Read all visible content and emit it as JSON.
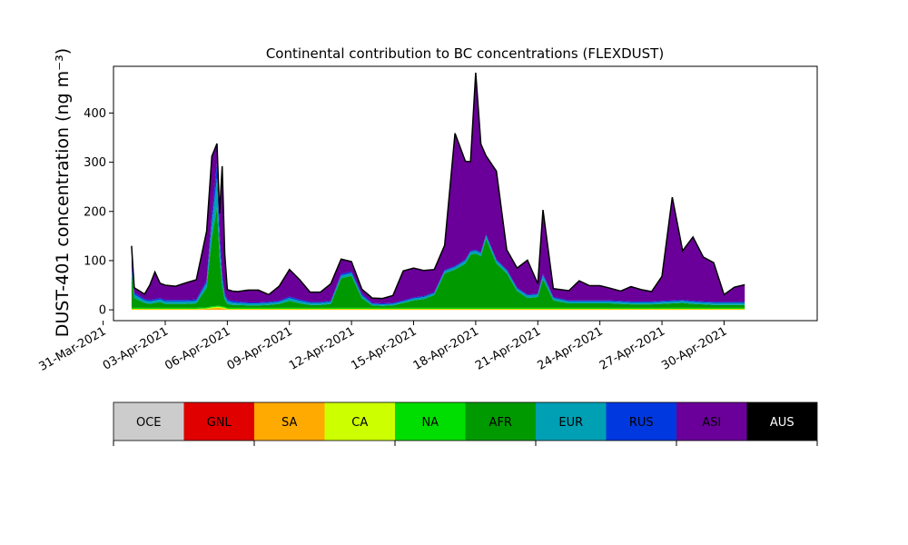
{
  "chart_data": {
    "type": "area",
    "stacked": true,
    "title": "Continental contribution to BC concentrations (FLEXDUST)",
    "ylabel": "DUST-401 concentration (ng m⁻³)",
    "xlabel": "",
    "xlim": [
      "2021-03-31T12:00",
      "2021-05-04T12:00"
    ],
    "ylim": [
      -22,
      495
    ],
    "x_ticks": [
      "2021-03-31",
      "2021-04-03",
      "2021-04-06",
      "2021-04-09",
      "2021-04-12",
      "2021-04-15",
      "2021-04-18",
      "2021-04-21",
      "2021-04-24",
      "2021-04-27",
      "2021-04-30"
    ],
    "x_tick_labels": [
      "31-Mar-2021",
      "03-Apr-2021",
      "06-Apr-2021",
      "09-Apr-2021",
      "12-Apr-2021",
      "15-Apr-2021",
      "18-Apr-2021",
      "21-Apr-2021",
      "24-Apr-2021",
      "27-Apr-2021",
      "30-Apr-2021"
    ],
    "y_ticks": [
      0,
      100,
      200,
      300,
      400
    ],
    "grid": false,
    "legend_position": "bottom-colorbar",
    "x": [
      "2021-04-01T09:00",
      "2021-04-01T12:00",
      "2021-04-02T00:00",
      "2021-04-02T06:00",
      "2021-04-02T12:00",
      "2021-04-02T18:00",
      "2021-04-03T00:00",
      "2021-04-03T12:00",
      "2021-04-04T00:00",
      "2021-04-04T12:00",
      "2021-04-05T00:00",
      "2021-04-05T06:00",
      "2021-04-05T12:00",
      "2021-04-05T15:00",
      "2021-04-05T18:00",
      "2021-04-05T21:00",
      "2021-04-06T00:00",
      "2021-04-06T06:00",
      "2021-04-06T12:00",
      "2021-04-07T00:00",
      "2021-04-07T12:00",
      "2021-04-08T00:00",
      "2021-04-08T12:00",
      "2021-04-09T00:00",
      "2021-04-09T12:00",
      "2021-04-10T00:00",
      "2021-04-10T12:00",
      "2021-04-11T00:00",
      "2021-04-11T12:00",
      "2021-04-12T00:00",
      "2021-04-12T12:00",
      "2021-04-13T00:00",
      "2021-04-13T12:00",
      "2021-04-14T00:00",
      "2021-04-14T12:00",
      "2021-04-15T00:00",
      "2021-04-15T12:00",
      "2021-04-16T00:00",
      "2021-04-16T12:00",
      "2021-04-17T00:00",
      "2021-04-17T12:00",
      "2021-04-17T18:00",
      "2021-04-18T00:00",
      "2021-04-18T06:00",
      "2021-04-18T12:00",
      "2021-04-19T00:00",
      "2021-04-19T12:00",
      "2021-04-20T00:00",
      "2021-04-20T12:00",
      "2021-04-21T00:00",
      "2021-04-21T06:00",
      "2021-04-21T18:00",
      "2021-04-22T12:00",
      "2021-04-23T00:00",
      "2021-04-23T12:00",
      "2021-04-24T00:00",
      "2021-04-24T12:00",
      "2021-04-25T00:00",
      "2021-04-25T12:00",
      "2021-04-26T00:00",
      "2021-04-26T12:00",
      "2021-04-27T00:00",
      "2021-04-27T12:00",
      "2021-04-28T00:00",
      "2021-04-28T12:00",
      "2021-04-29T00:00",
      "2021-04-29T12:00",
      "2021-04-30T00:00",
      "2021-04-30T12:00",
      "2021-05-01T00:00"
    ],
    "series": [
      {
        "name": "OCE",
        "color": "#cccccc",
        "values": [
          0,
          0,
          0,
          0,
          0,
          0,
          0,
          0,
          0,
          0,
          0,
          0,
          0,
          0,
          0,
          0,
          0,
          0,
          0,
          0,
          0,
          0,
          0,
          0,
          0,
          0,
          0,
          0,
          0,
          0,
          0,
          0,
          0,
          0,
          0,
          0,
          0,
          0,
          0,
          0,
          0,
          0,
          0,
          0,
          0,
          0,
          0,
          0,
          0,
          0,
          0,
          0,
          0,
          0,
          0,
          0,
          0,
          0,
          0,
          0,
          0,
          0,
          0,
          0,
          0,
          0,
          0,
          0,
          0,
          0
        ]
      },
      {
        "name": "GNL",
        "color": "#e00000",
        "values": [
          0,
          0,
          0,
          0,
          0,
          0,
          0,
          0,
          0,
          0,
          0,
          0,
          0,
          0,
          0,
          0,
          0,
          0,
          0,
          0,
          0,
          0,
          0,
          0,
          0,
          0,
          0,
          0,
          0,
          0,
          0,
          0,
          0,
          0,
          0,
          0,
          0,
          0,
          0,
          0,
          0,
          0,
          0,
          0,
          0,
          0,
          0,
          0,
          0,
          0,
          0,
          0,
          0,
          0,
          0,
          0,
          0,
          0,
          0,
          0,
          0,
          0,
          0,
          0,
          0,
          0,
          0,
          0,
          0,
          0
        ]
      },
      {
        "name": "SA",
        "color": "#ffaa00",
        "values": [
          1,
          1,
          1,
          1,
          1,
          1,
          1,
          1,
          1,
          1,
          2,
          3,
          4,
          4,
          3,
          2,
          1,
          1,
          1,
          1,
          1,
          1,
          1,
          1,
          1,
          1,
          1,
          1,
          1,
          1,
          1,
          1,
          1,
          1,
          1,
          1,
          1,
          1,
          1,
          1,
          1,
          1,
          1,
          1,
          1,
          1,
          1,
          1,
          1,
          1,
          1,
          1,
          1,
          1,
          1,
          1,
          1,
          1,
          1,
          1,
          1,
          1,
          1,
          1,
          1,
          1,
          1,
          1,
          1,
          1
        ]
      },
      {
        "name": "CA",
        "color": "#ccff00",
        "values": [
          1,
          1,
          1,
          1,
          1,
          1,
          1,
          1,
          1,
          1,
          1,
          2,
          2,
          2,
          2,
          2,
          1,
          1,
          1,
          1,
          1,
          1,
          1,
          1,
          1,
          1,
          1,
          1,
          1,
          1,
          1,
          1,
          1,
          1,
          1,
          1,
          1,
          1,
          1,
          1,
          1,
          1,
          1,
          1,
          1,
          1,
          1,
          1,
          1,
          1,
          1,
          1,
          1,
          1,
          1,
          1,
          1,
          1,
          1,
          1,
          1,
          1,
          1,
          1,
          1,
          1,
          1,
          1,
          1,
          1
        ]
      },
      {
        "name": "NA",
        "color": "#00dd00",
        "values": [
          2,
          2,
          2,
          2,
          2,
          2,
          2,
          2,
          2,
          2,
          2,
          2,
          2,
          2,
          2,
          2,
          2,
          2,
          2,
          2,
          2,
          2,
          2,
          2,
          2,
          2,
          2,
          2,
          2,
          2,
          2,
          2,
          2,
          2,
          2,
          2,
          2,
          2,
          2,
          2,
          2,
          2,
          2,
          2,
          2,
          2,
          2,
          2,
          2,
          2,
          2,
          2,
          2,
          2,
          2,
          2,
          2,
          2,
          2,
          2,
          2,
          2,
          2,
          2,
          2,
          2,
          2,
          2,
          2,
          2
        ]
      },
      {
        "name": "AFR",
        "color": "#009900",
        "values": [
          70,
          20,
          10,
          8,
          10,
          12,
          8,
          8,
          8,
          9,
          40,
          140,
          200,
          100,
          40,
          15,
          8,
          6,
          6,
          5,
          5,
          6,
          8,
          14,
          9,
          6,
          6,
          8,
          60,
          65,
          20,
          5,
          4,
          5,
          10,
          15,
          18,
          26,
          70,
          78,
          90,
          108,
          110,
          105,
          140,
          90,
          70,
          34,
          20,
          22,
          58,
          15,
          9,
          9,
          9,
          9,
          9,
          8,
          7,
          7,
          7,
          8,
          9,
          10,
          8,
          7,
          6,
          6,
          6,
          6
        ]
      },
      {
        "name": "EUR",
        "color": "#00a0b4",
        "values": [
          10,
          7,
          5,
          5,
          5,
          5,
          5,
          5,
          5,
          5,
          10,
          30,
          60,
          30,
          15,
          8,
          6,
          5,
          4,
          4,
          4,
          4,
          4,
          6,
          5,
          4,
          4,
          4,
          6,
          6,
          5,
          3,
          3,
          3,
          3,
          4,
          4,
          4,
          5,
          5,
          6,
          6,
          6,
          6,
          7,
          6,
          6,
          5,
          5,
          5,
          8,
          5,
          4,
          4,
          4,
          4,
          4,
          4,
          4,
          4,
          4,
          4,
          4,
          4,
          4,
          4,
          4,
          4,
          4,
          4
        ]
      },
      {
        "name": "RUS",
        "color": "#0038e0",
        "values": [
          6,
          4,
          3,
          3,
          3,
          3,
          3,
          3,
          3,
          3,
          5,
          15,
          30,
          20,
          10,
          5,
          3,
          3,
          3,
          2,
          2,
          2,
          2,
          3,
          3,
          2,
          2,
          2,
          3,
          3,
          3,
          2,
          2,
          2,
          2,
          2,
          2,
          2,
          2,
          2,
          2,
          2,
          2,
          2,
          2,
          2,
          2,
          2,
          2,
          2,
          3,
          2,
          2,
          2,
          2,
          2,
          2,
          2,
          2,
          2,
          2,
          2,
          2,
          2,
          2,
          2,
          2,
          2,
          2,
          2
        ]
      },
      {
        "name": "ASI",
        "color": "#6a0099",
        "values": [
          40,
          10,
          10,
          30,
          55,
          30,
          30,
          28,
          35,
          40,
          100,
          120,
          40,
          38,
          220,
          80,
          20,
          20,
          20,
          25,
          25,
          15,
          30,
          55,
          40,
          20,
          20,
          35,
          30,
          20,
          10,
          10,
          10,
          15,
          60,
          60,
          52,
          46,
          50,
          270,
          200,
          181,
          360,
          220,
          160,
          180,
          40,
          40,
          70,
          20,
          130,
          17,
          20,
          40,
          30,
          30,
          25,
          20,
          30,
          24,
          20,
          50,
          210,
          100,
          130,
          90,
          80,
          15,
          30,
          35
        ]
      },
      {
        "name": "AUS",
        "color": "#000000",
        "values": [
          0,
          0,
          0,
          0,
          0,
          0,
          0,
          0,
          0,
          0,
          0,
          0,
          0,
          0,
          0,
          0,
          0,
          0,
          0,
          0,
          0,
          0,
          0,
          0,
          0,
          0,
          0,
          0,
          0,
          0,
          0,
          0,
          0,
          0,
          0,
          0,
          0,
          0,
          0,
          0,
          0,
          0,
          0,
          0,
          0,
          0,
          0,
          0,
          0,
          0,
          0,
          0,
          0,
          0,
          0,
          0,
          0,
          0,
          0,
          0,
          0,
          0,
          0,
          0,
          0,
          0,
          0,
          0,
          0,
          0
        ]
      }
    ]
  }
}
